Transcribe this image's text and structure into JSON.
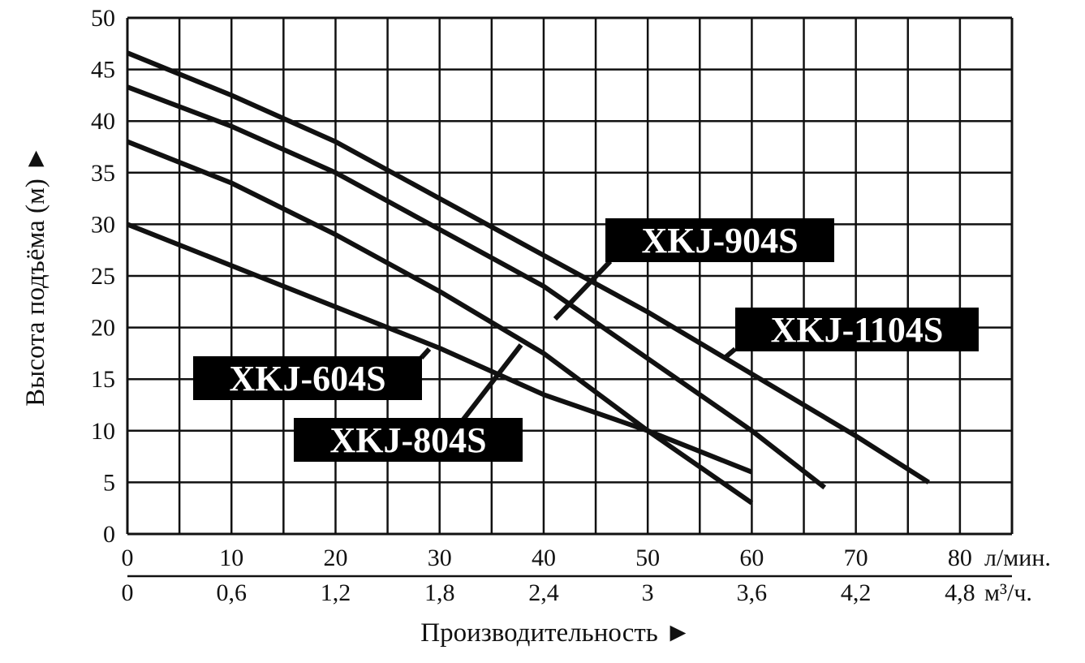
{
  "chart_data": {
    "type": "line",
    "title": "",
    "xlabel": "Производительность ►",
    "ylabel": "Высота подъёма (м) ►",
    "x_unit": "л/мин.",
    "x2_unit": "м³/ч.",
    "xlim": [
      0,
      85
    ],
    "ylim": [
      0,
      50
    ],
    "x_ticks": [
      "0",
      "10",
      "20",
      "30",
      "40",
      "50",
      "60",
      "70",
      "80"
    ],
    "x2_ticks": [
      "0",
      "0,6",
      "1,2",
      "1,8",
      "2,4",
      "3",
      "3,6",
      "4,2",
      "4,8"
    ],
    "y_ticks": [
      "0",
      "5",
      "10",
      "15",
      "20",
      "25",
      "30",
      "35",
      "40",
      "45",
      "50"
    ],
    "grid": true,
    "series": [
      {
        "name": "XKJ-604S",
        "x": [
          0,
          10,
          20,
          30,
          40,
          50,
          55,
          60
        ],
        "y": [
          30,
          26,
          22,
          18,
          13.5,
          10,
          8,
          6
        ]
      },
      {
        "name": "XKJ-804S",
        "x": [
          0,
          10,
          20,
          30,
          40,
          50,
          60
        ],
        "y": [
          38,
          34,
          29,
          23.5,
          17.5,
          10,
          3
        ]
      },
      {
        "name": "XKJ-904S",
        "x": [
          0,
          10,
          20,
          30,
          40,
          50,
          60,
          67
        ],
        "y": [
          43.3,
          39.5,
          35,
          29.5,
          24,
          17,
          10,
          4.5
        ]
      },
      {
        "name": "XKJ-1104S",
        "x": [
          0,
          10,
          20,
          30,
          40,
          50,
          60,
          70,
          77
        ],
        "y": [
          46.6,
          42.5,
          38,
          32.5,
          27,
          21.5,
          15.5,
          9.5,
          5
        ]
      }
    ]
  }
}
